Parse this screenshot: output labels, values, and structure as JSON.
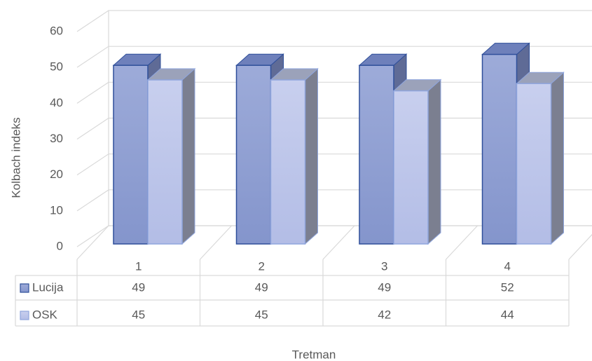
{
  "chart_data": {
    "type": "bar",
    "categories": [
      "1",
      "2",
      "3",
      "4"
    ],
    "series": [
      {
        "name": "Lucija",
        "color": "#8d9dd2",
        "values": [
          49,
          49,
          49,
          52
        ]
      },
      {
        "name": "OSK",
        "color": "#bcc5e9",
        "values": [
          45,
          45,
          42,
          44
        ]
      }
    ],
    "y_label": "Kolbach indeks",
    "x_label": "Tretman",
    "ylim": [
      0,
      60
    ],
    "yticks": [
      0,
      10,
      20,
      30,
      40,
      50,
      60
    ],
    "grid": true,
    "data_table": true
  }
}
